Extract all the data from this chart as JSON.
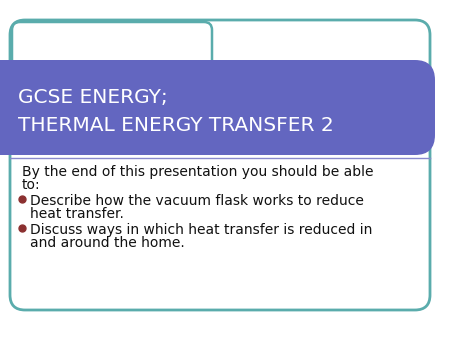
{
  "title_line1": "GCSE ENERGY;",
  "title_line2": "THERMAL ENERGY TRANSFER 2",
  "title_color": "#ffffff",
  "title_bg_color": "#6366c0",
  "body_bg_color": "#ffffff",
  "border_color": "#5aacac",
  "slide_bg_color": "#ffffff",
  "intro_text_line1": "By the end of this presentation you should be able",
  "intro_text_line2": "to:",
  "bullet_color": "#8b3030",
  "bullet1_line1": "Describe how the vacuum flask works to reduce",
  "bullet1_line2": "heat transfer.",
  "bullet2_line1": "Discuss ways in which heat transfer is reduced in",
  "bullet2_line2": "and around the home.",
  "body_text_color": "#111111",
  "title_fontsize": 14.5,
  "body_fontsize": 10,
  "separator_color": "#8888cc",
  "tab_color": "#ffffff",
  "tab_border_color": "#5aacac"
}
